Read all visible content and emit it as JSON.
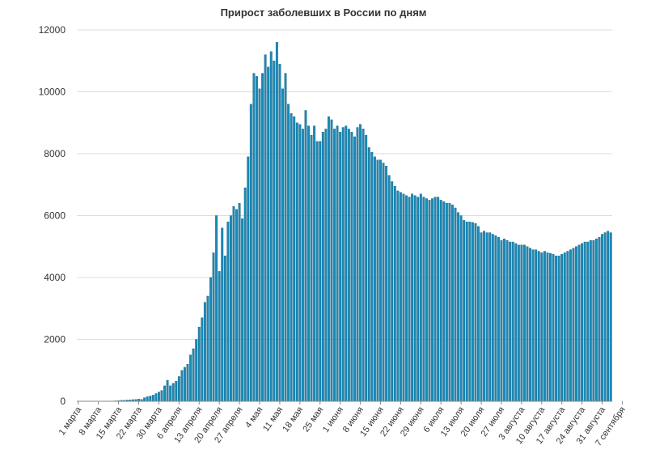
{
  "chart_data": {
    "type": "bar",
    "title": "Прирост заболевших в России по дням",
    "xlabel": "",
    "ylabel": "",
    "ylim": [
      0,
      12000
    ],
    "yticks": [
      0,
      2000,
      4000,
      6000,
      8000,
      10000,
      12000
    ],
    "grid": true,
    "legend": "none",
    "bar_color": "#1a8ab8",
    "bar_edge_color": "#0a4f6e",
    "x_tick_labels": [
      "1 марта",
      "8 марта",
      "15 марта",
      "22 марта",
      "30 марта",
      "6 апреля",
      "13 апреля",
      "20 апреля",
      "27 апреля",
      "4 мая",
      "11 мая",
      "18 мая",
      "25 мая",
      "1 июня",
      "8 июня",
      "15 июня",
      "22 июня",
      "29 июня",
      "6 июля",
      "13 июля",
      "20 июля",
      "27 июля",
      "3 августа",
      "10 августа",
      "17 августа",
      "24 августа",
      "31 августа",
      "7 сентября"
    ],
    "values": [
      0,
      0,
      2,
      1,
      1,
      1,
      2,
      4,
      3,
      3,
      5,
      8,
      10,
      15,
      20,
      30,
      33,
      40,
      45,
      55,
      60,
      70,
      60,
      115,
      150,
      170,
      200,
      250,
      300,
      350,
      500,
      680,
      500,
      580,
      650,
      800,
      1000,
      1100,
      1200,
      1500,
      1700,
      2000,
      2400,
      2700,
      3200,
      3400,
      4000,
      4800,
      6000,
      4200,
      5600,
      4700,
      5800,
      6000,
      6300,
      6200,
      6400,
      5900,
      6900,
      7900,
      9600,
      10600,
      10500,
      10100,
      10600,
      11200,
      10800,
      11300,
      11000,
      11600,
      10900,
      10100,
      10600,
      9600,
      9300,
      9200,
      9000,
      8950,
      8800,
      9400,
      8900,
      8600,
      8900,
      8400,
      8400,
      8700,
      8800,
      9200,
      9100,
      8800,
      8900,
      8700,
      8850,
      8900,
      8800,
      8700,
      8550,
      8850,
      8950,
      8800,
      8600,
      8200,
      8050,
      7900,
      7800,
      7800,
      7700,
      7600,
      7300,
      7100,
      6950,
      6800,
      6750,
      6700,
      6650,
      6600,
      6700,
      6650,
      6600,
      6700,
      6600,
      6550,
      6500,
      6550,
      6600,
      6600,
      6500,
      6450,
      6400,
      6400,
      6350,
      6250,
      6100,
      6000,
      5850,
      5800,
      5800,
      5780,
      5750,
      5650,
      5450,
      5500,
      5450,
      5450,
      5400,
      5350,
      5300,
      5200,
      5250,
      5200,
      5150,
      5150,
      5100,
      5050,
      5050,
      5050,
      5000,
      4950,
      4900,
      4900,
      4850,
      4800,
      4850,
      4800,
      4780,
      4750,
      4700,
      4700,
      4750,
      4800,
      4850,
      4900,
      4950,
      5000,
      5050,
      5100,
      5150,
      5150,
      5200,
      5200,
      5250,
      5300,
      5400,
      5450,
      5500,
      5450
    ]
  }
}
